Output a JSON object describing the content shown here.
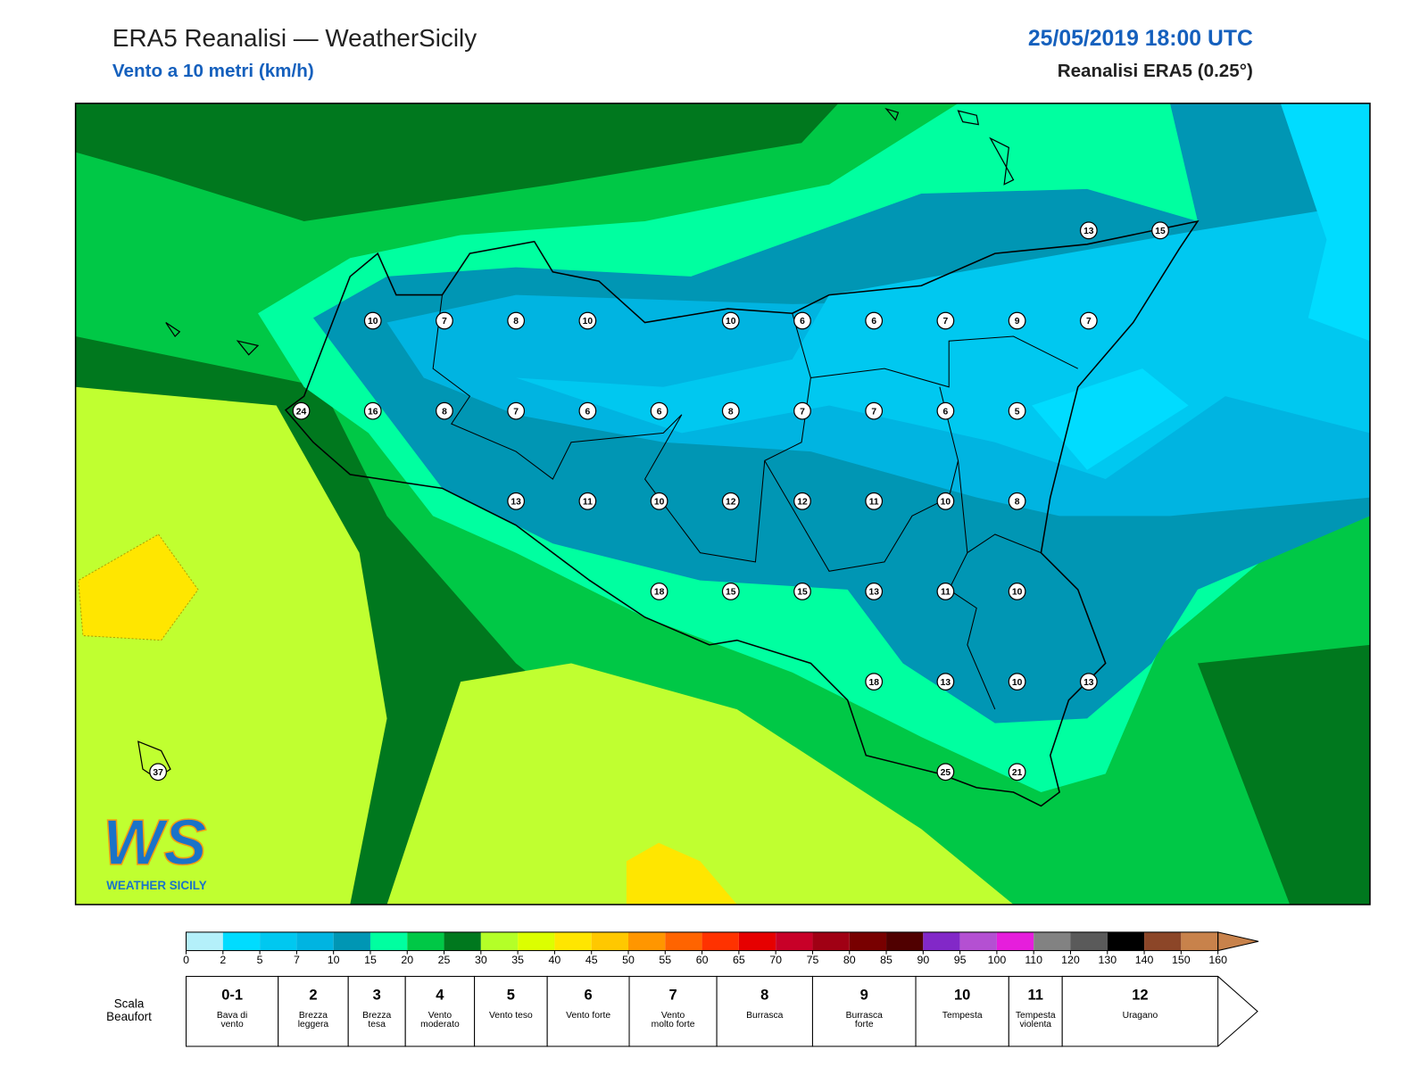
{
  "header": {
    "title": "ERA5 Reanalisi — WeatherSicily",
    "subtitle": "Vento a 10 metri (km/h)",
    "datetime": "25/05/2019 18:00 UTC",
    "source": "Reanalisi ERA5 (0.25°)"
  },
  "logo": {
    "mark": "WS",
    "name": "WEATHER SICILY"
  },
  "stations": [
    13,
    15,
    10,
    7,
    8,
    10,
    10,
    6,
    6,
    7,
    9,
    7,
    24,
    16,
    8,
    7,
    6,
    6,
    8,
    7,
    7,
    6,
    5,
    13,
    11,
    10,
    12,
    12,
    11,
    10,
    8,
    18,
    15,
    15,
    13,
    11,
    10,
    18,
    13,
    10,
    13,
    25,
    21,
    37
  ],
  "colorbar": {
    "ticks": [
      0,
      2,
      5,
      7,
      10,
      15,
      20,
      25,
      30,
      35,
      40,
      45,
      50,
      55,
      60,
      65,
      70,
      75,
      80,
      85,
      90,
      95,
      100,
      110,
      120,
      130,
      140,
      150,
      160
    ],
    "colors": [
      "#b4f0fa",
      "#00dcff",
      "#00c8f0",
      "#00b4e1",
      "#0096b4",
      "#00ffa0",
      "#00c846",
      "#00781e",
      "#b4ff28",
      "#dcff00",
      "#ffe600",
      "#ffc800",
      "#ff9600",
      "#ff6400",
      "#ff3200",
      "#e60000",
      "#c80028",
      "#a00014",
      "#780000",
      "#500000",
      "#8228c8",
      "#b450d2",
      "#e61edc",
      "#828282",
      "#5a5a5a",
      "#000000",
      "#8c4628",
      "#c8824b"
    ]
  },
  "beaufort": {
    "label": "Scala Beaufort",
    "levels": [
      {
        "force": "0-1",
        "name": "Bava di vento"
      },
      {
        "force": 2,
        "name": "Brezza leggera"
      },
      {
        "force": 3,
        "name": "Brezza tesa"
      },
      {
        "force": 4,
        "name": "Vento moderato"
      },
      {
        "force": 5,
        "name": "Vento teso"
      },
      {
        "force": 6,
        "name": "Vento forte"
      },
      {
        "force": 7,
        "name": "Vento molto forte"
      },
      {
        "force": 8,
        "name": "Burrasca"
      },
      {
        "force": 9,
        "name": "Burrasca forte"
      },
      {
        "force": 10,
        "name": "Tempesta"
      },
      {
        "force": 11,
        "name": "Tempesta violenta"
      },
      {
        "force": 12,
        "name": "Uragano"
      }
    ]
  }
}
